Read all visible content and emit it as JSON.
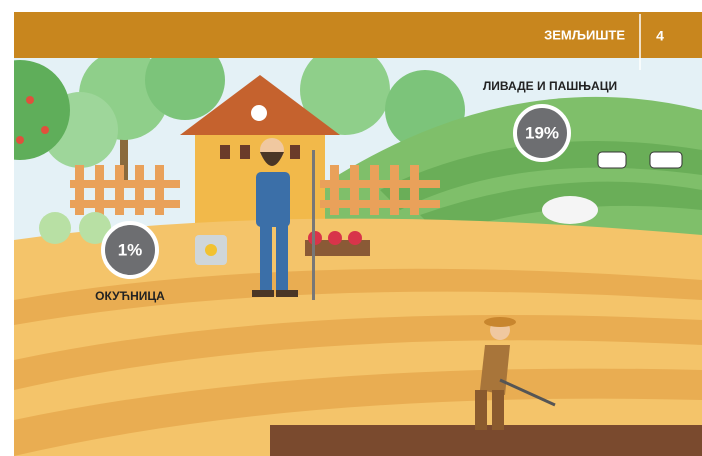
{
  "header": {
    "title": "ЗЕМЉИШТЕ",
    "page": "4"
  },
  "stats": [
    {
      "label": "ЛИВАДЕ И ПАШЊАЦИ",
      "value": "19%"
    },
    {
      "label": "ОКУЋНИЦА",
      "value": "1%"
    }
  ]
}
